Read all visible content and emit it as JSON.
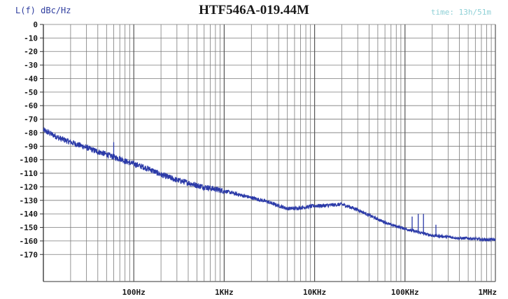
{
  "chart_data": {
    "type": "line",
    "title": "HTF546A-019.44M",
    "ylabel": "L(f) dBc/Hz",
    "xlabel": "",
    "annotation": "time: 13h/51m",
    "x_scale": "log",
    "xlim": [
      10,
      1000000
    ],
    "ylim": [
      -190,
      0
    ],
    "y_ticks": [
      0,
      -10,
      -20,
      -30,
      -40,
      -50,
      -60,
      -70,
      -80,
      -90,
      -100,
      -110,
      -120,
      -130,
      -140,
      -150,
      -160,
      -170
    ],
    "y_tick_labels": [
      "0",
      "-10",
      "-20",
      "-30",
      "-40",
      "-50",
      "-60",
      "-70",
      "-80",
      "-90",
      "-100",
      "-110",
      "-120",
      "-130",
      "-140",
      "-150",
      "-160",
      "-170"
    ],
    "x_ticks": [
      100,
      1000,
      10000,
      100000,
      1000000
    ],
    "x_tick_labels": [
      "100Hz",
      "1KHz",
      "10KHz",
      "100KHz",
      "1MHz"
    ],
    "grid": true,
    "colors": {
      "trace": "#2b3aa8",
      "grid": "#7a7a7a",
      "axis_text": "#1a1a1a"
    },
    "series": [
      {
        "x": [
          10,
          15,
          20,
          30,
          40,
          50,
          60,
          70,
          80,
          100,
          150,
          200,
          300,
          400,
          500,
          700,
          1000,
          1500,
          2000,
          3000,
          4000,
          5000,
          6000,
          7000,
          8000,
          10000,
          12000,
          15000,
          20000,
          25000,
          30000,
          40000,
          50000,
          70000,
          100000,
          150000,
          200000,
          300000,
          400000,
          500000,
          700000,
          1000000
        ],
        "y": [
          -78,
          -84,
          -87,
          -91,
          -94,
          -96,
          -98,
          -99,
          -101,
          -103,
          -107,
          -111,
          -115,
          -117,
          -119,
          -121,
          -123,
          -126,
          -128,
          -131,
          -134,
          -136,
          -136,
          -135.5,
          -135,
          -134,
          -134,
          -133.5,
          -133,
          -135,
          -137,
          -141,
          -144,
          -148,
          -151,
          -154,
          -156,
          -157,
          -158,
          -158,
          -159,
          -159
        ]
      }
    ],
    "spurs": [
      {
        "x": 60,
        "y": -87
      },
      {
        "x": 120000,
        "y": -142
      },
      {
        "x": 140000,
        "y": -140
      },
      {
        "x": 160000,
        "y": -140
      },
      {
        "x": 220000,
        "y": -148
      }
    ]
  }
}
